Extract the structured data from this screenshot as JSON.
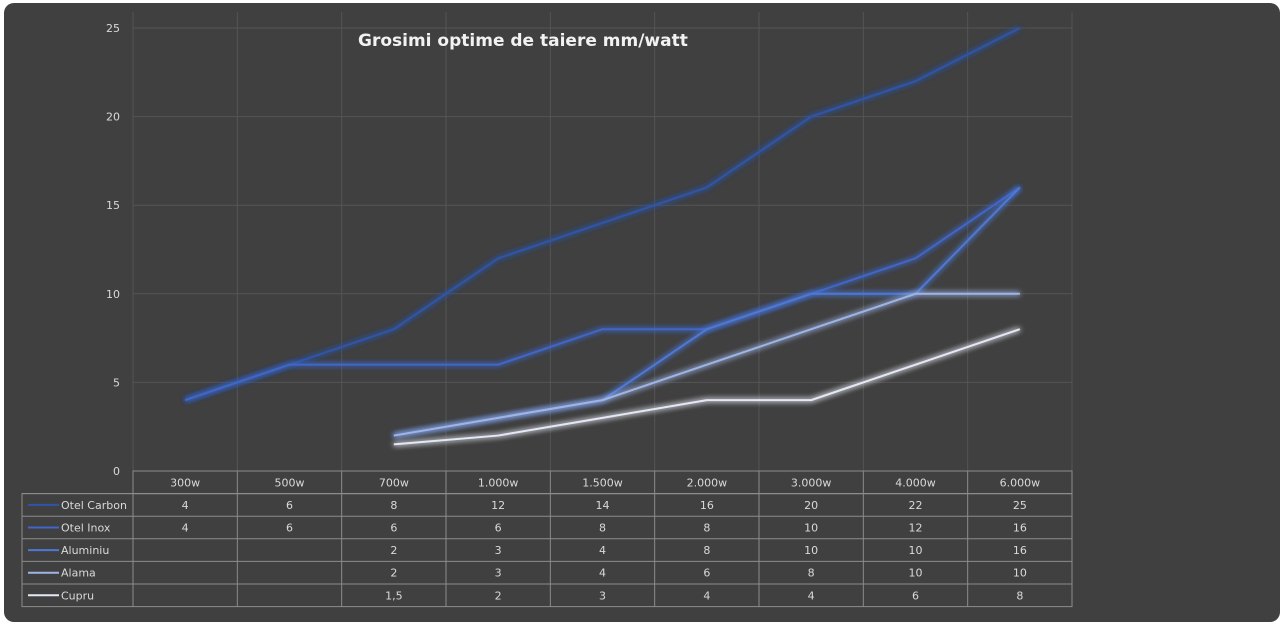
{
  "chart_data": {
    "type": "line",
    "title": "Grosimi optime de taiere mm/watt",
    "xlabel": "",
    "ylabel": "",
    "ylim": [
      0,
      25
    ],
    "yticks": [
      "0",
      "5",
      "10",
      "15",
      "20",
      "25"
    ],
    "grid": true,
    "legend": "data-table-bottom",
    "categories": [
      "300w",
      "500w",
      "700w",
      "1.000w",
      "1.500w",
      "2.000w",
      "3.000w",
      "4.000w",
      "6.000w"
    ],
    "series": [
      {
        "name": "Otel Carbon",
        "color": "#2f55a8",
        "values": [
          4,
          6,
          8,
          12,
          14,
          16,
          20,
          22,
          25
        ],
        "labels": [
          "4",
          "6",
          "8",
          "12",
          "14",
          "16",
          "20",
          "22",
          "25"
        ]
      },
      {
        "name": "Otel Inox",
        "color": "#3f66c8",
        "values": [
          4,
          6,
          6,
          6,
          8,
          8,
          10,
          12,
          16
        ],
        "labels": [
          "4",
          "6",
          "6",
          "6",
          "8",
          "8",
          "10",
          "12",
          "16"
        ]
      },
      {
        "name": "Aluminiu",
        "color": "#4d78d6",
        "values": [
          null,
          null,
          2,
          3,
          4,
          8,
          10,
          10,
          16
        ],
        "labels": [
          "",
          "",
          "2",
          "3",
          "4",
          "8",
          "10",
          "10",
          "16"
        ]
      },
      {
        "name": "Alama",
        "color": "#9fb4e6",
        "values": [
          null,
          null,
          2,
          3,
          4,
          6,
          8,
          10,
          10
        ],
        "labels": [
          "",
          "",
          "2",
          "3",
          "4",
          "6",
          "8",
          "10",
          "10"
        ]
      },
      {
        "name": "Cupru",
        "color": "#e4e8f4",
        "values": [
          null,
          null,
          1.5,
          2,
          3,
          4,
          4,
          6,
          8
        ],
        "labels": [
          "",
          "",
          "1,5",
          "2",
          "3",
          "4",
          "4",
          "6",
          "8"
        ]
      }
    ]
  }
}
